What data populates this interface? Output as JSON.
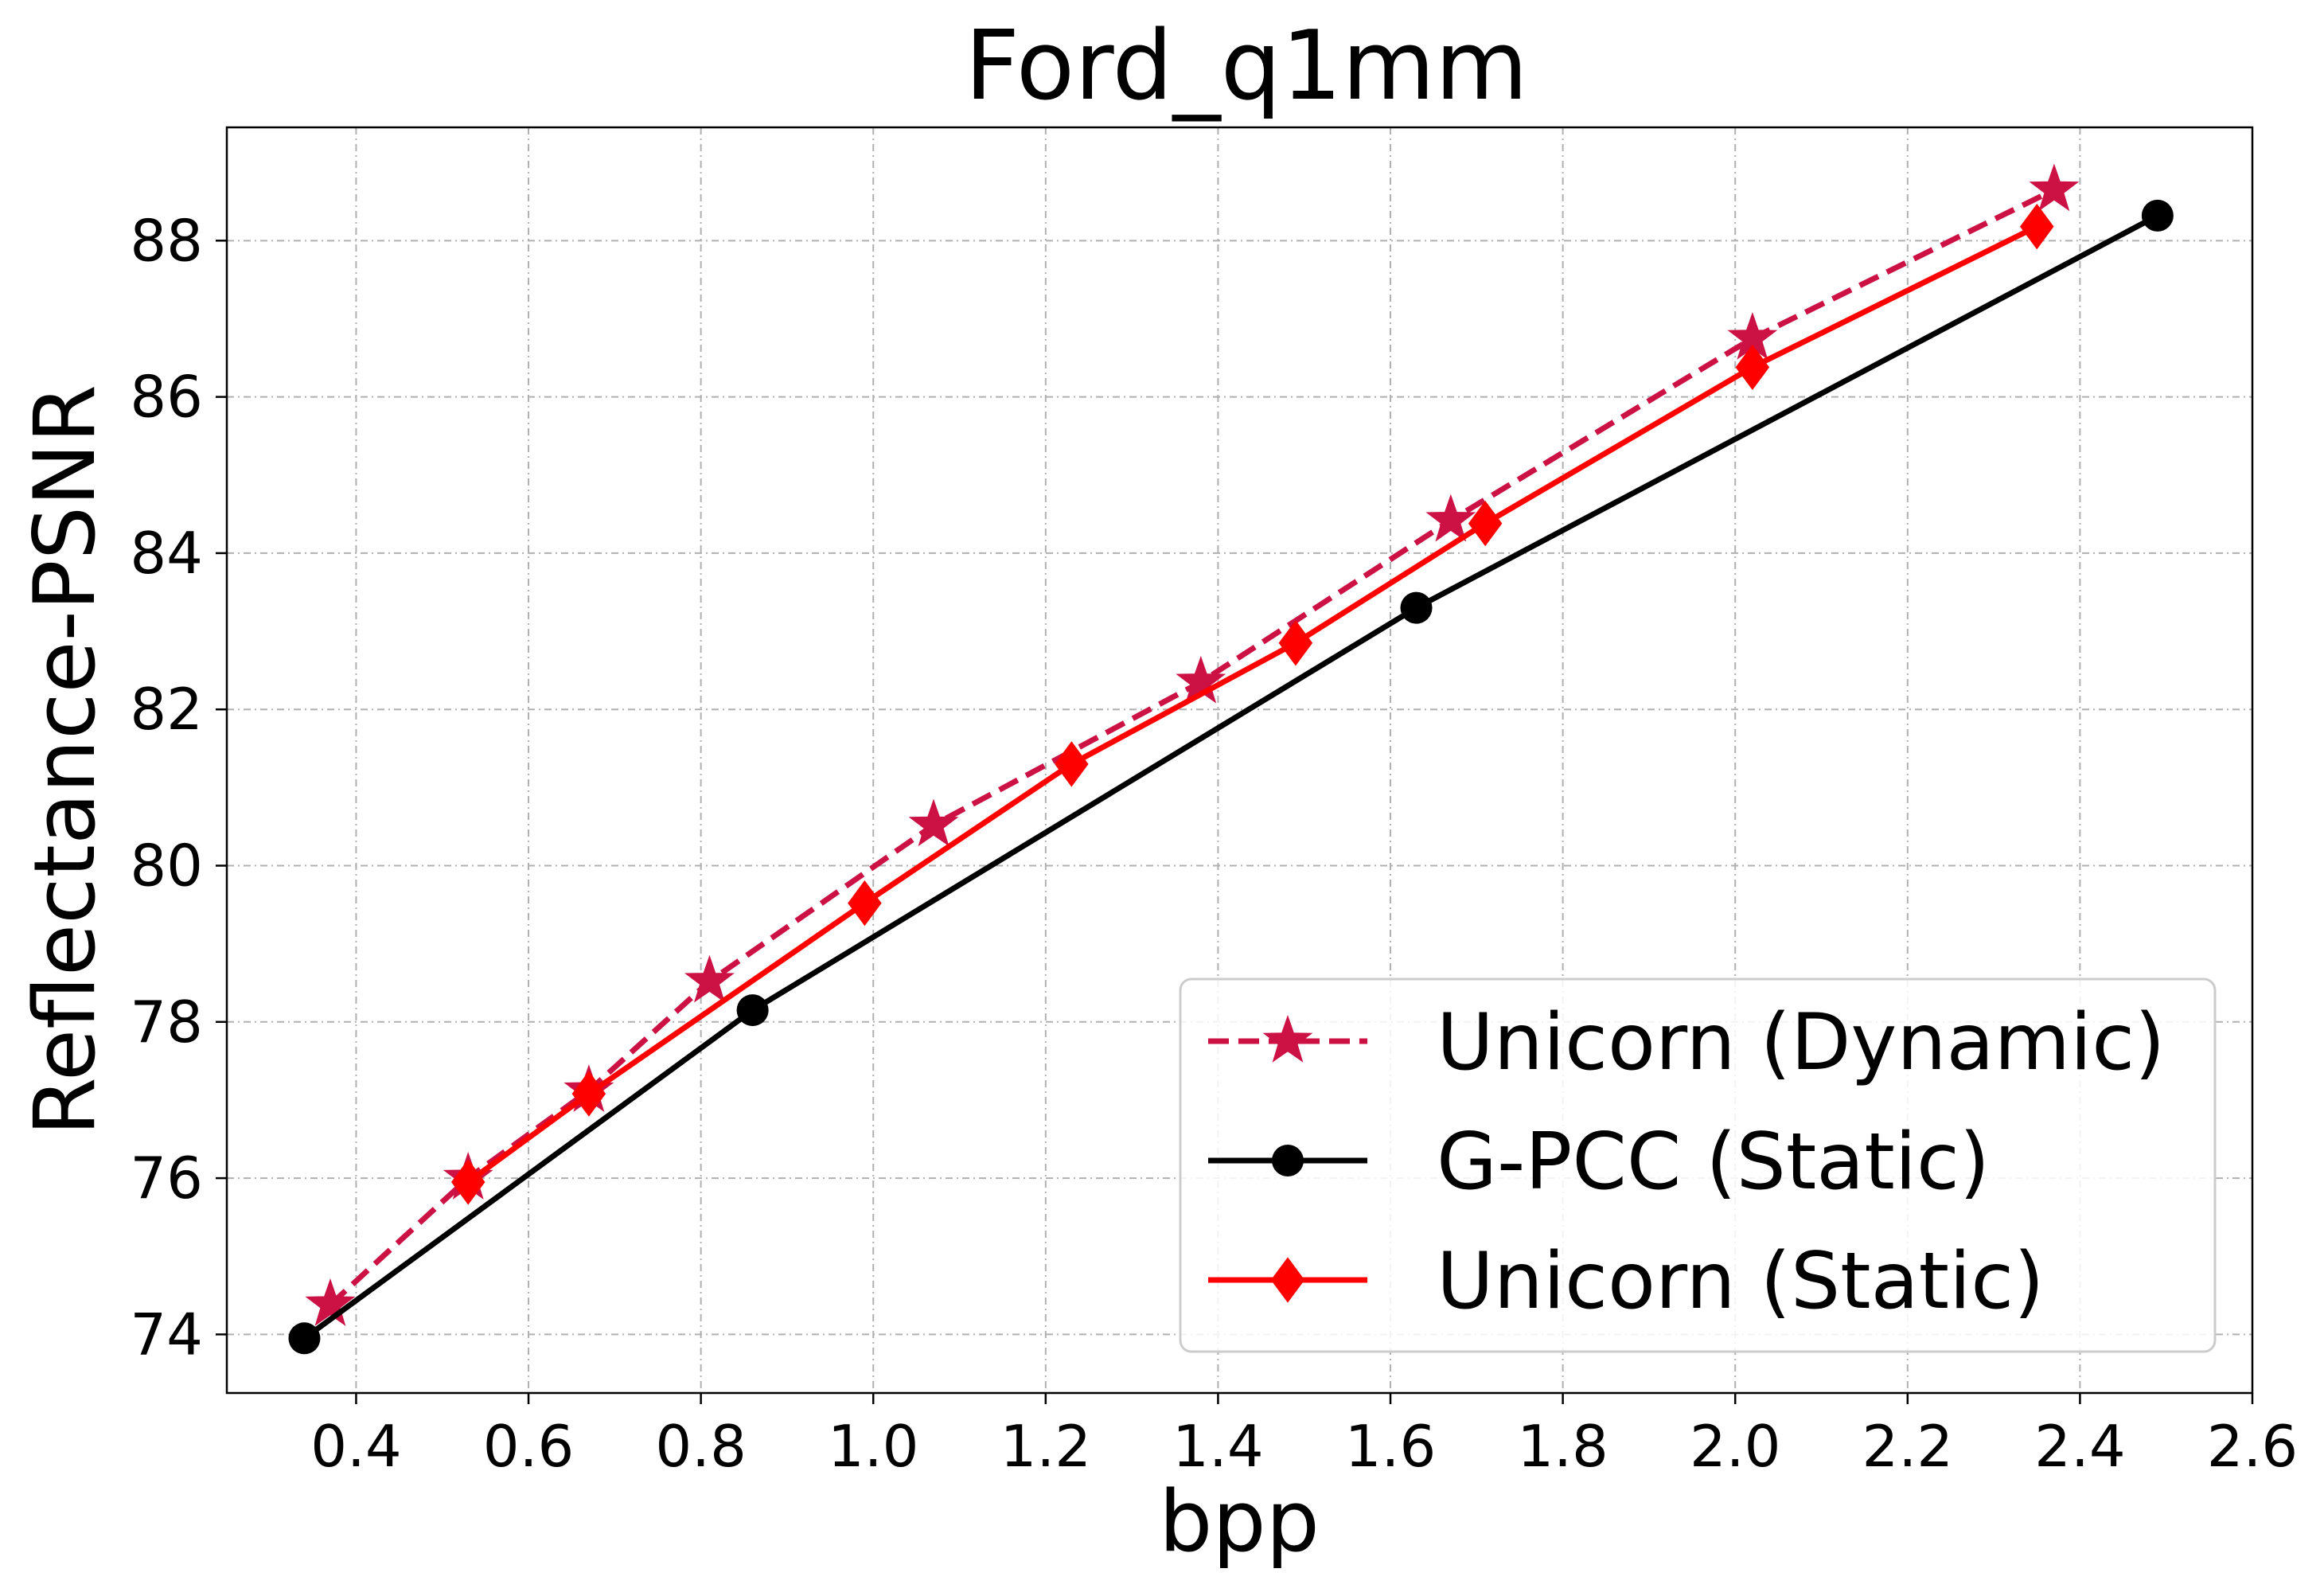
{
  "chart_data": {
    "type": "line",
    "title": "Ford_q1mm",
    "xlabel": "bpp",
    "ylabel": "Reflectance-PSNR",
    "xlim": [
      0.25,
      2.6
    ],
    "ylim": [
      73.25,
      89.45
    ],
    "xticks": [
      0.4,
      0.6,
      0.8,
      1.0,
      1.2,
      1.4,
      1.6,
      1.8,
      2.0,
      2.2,
      2.4,
      2.6
    ],
    "xtick_labels": [
      "0.4",
      "0.6",
      "0.8",
      "1.0",
      "1.2",
      "1.4",
      "1.6",
      "1.8",
      "2.0",
      "2.2",
      "2.4",
      "2.6"
    ],
    "yticks": [
      74,
      76,
      78,
      80,
      82,
      84,
      86,
      88
    ],
    "ytick_labels": [
      "74",
      "76",
      "78",
      "80",
      "82",
      "84",
      "86",
      "88"
    ],
    "grid": true,
    "legend_position": "bottom-right",
    "series": [
      {
        "name": "Unicorn (Dynamic)",
        "color": "#cc1144",
        "line_style": "dashed",
        "marker": "star",
        "x": [
          0.37,
          0.53,
          0.67,
          0.81,
          1.07,
          1.38,
          1.67,
          2.02,
          2.37
        ],
        "y": [
          74.38,
          76.0,
          77.12,
          78.52,
          80.52,
          82.35,
          84.42,
          86.75,
          88.65
        ]
      },
      {
        "name": "G-PCC (Static)",
        "color": "#000000",
        "line_style": "solid",
        "marker": "circle",
        "x": [
          0.34,
          0.86,
          1.63,
          2.49
        ],
        "y": [
          73.95,
          78.15,
          83.3,
          88.32
        ]
      },
      {
        "name": "Unicorn (Static)",
        "color": "#ff0000",
        "line_style": "solid",
        "marker": "diamond",
        "x": [
          0.53,
          0.67,
          0.99,
          1.23,
          1.49,
          1.71,
          2.02,
          2.35
        ],
        "y": [
          75.95,
          77.08,
          79.52,
          81.3,
          82.85,
          84.38,
          86.38,
          88.18
        ]
      }
    ]
  }
}
